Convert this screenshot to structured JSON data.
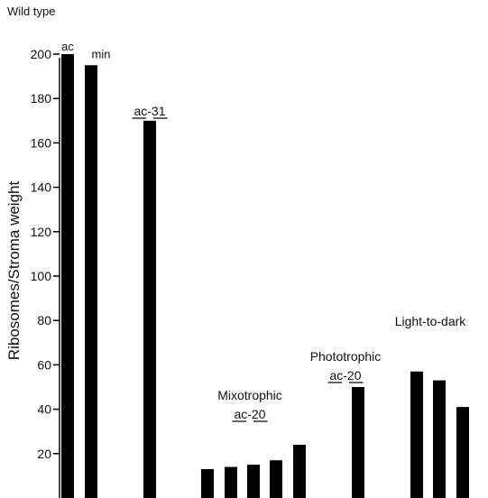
{
  "chart_data": {
    "type": "bar",
    "title": "Wild type",
    "ylabel": "Ribosomes/Stroma weight",
    "xlabel": "",
    "ylim": [
      0,
      200
    ],
    "yticks": [
      20,
      40,
      60,
      80,
      100,
      120,
      140,
      160,
      180,
      200
    ],
    "grid": false,
    "legend": "none",
    "bar_color": "#000000",
    "bars": [
      {
        "value": 200,
        "label": "ac"
      },
      {
        "value": 195,
        "label": "min"
      },
      {
        "value": 170,
        "label": ""
      },
      {
        "value": 13,
        "label": ""
      },
      {
        "value": 14,
        "label": ""
      },
      {
        "value": 15,
        "label": ""
      },
      {
        "value": 17,
        "label": ""
      },
      {
        "value": 24,
        "label": ""
      },
      {
        "value": 50,
        "label": ""
      },
      {
        "value": 57,
        "label": ""
      },
      {
        "value": 53,
        "label": ""
      },
      {
        "value": 41,
        "label": ""
      }
    ],
    "annotations": [
      {
        "lines": [
          "ac-31"
        ],
        "underline": "ac"
      },
      {
        "lines": [
          "Mixotrophic",
          "ac-20"
        ],
        "underline": "ac"
      },
      {
        "lines": [
          "Phototrophic",
          "ac-20"
        ],
        "underline": "ac"
      },
      {
        "lines": [
          "Light-to-dark"
        ],
        "underline": ""
      }
    ]
  }
}
